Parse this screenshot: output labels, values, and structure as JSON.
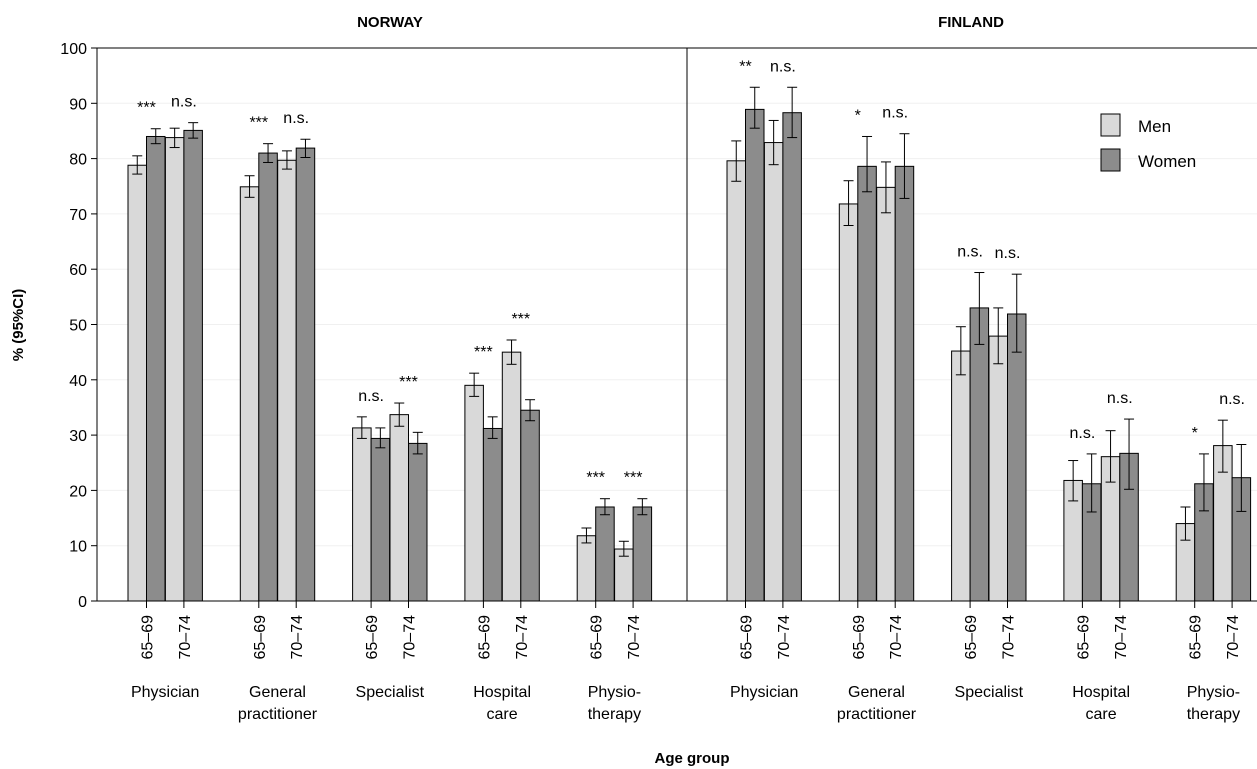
{
  "chart_data": {
    "type": "bar",
    "ylabel": "% (95%CI)",
    "xlabel": "Age group",
    "ylim": [
      0,
      100
    ],
    "yticks": [
      0,
      10,
      20,
      30,
      40,
      50,
      60,
      70,
      80,
      90,
      100
    ],
    "age_groups": [
      "65–69",
      "70–74"
    ],
    "legend": {
      "position": "top-right",
      "entries": [
        {
          "name": "Men",
          "color": "#d9d9d9"
        },
        {
          "name": "Women",
          "color": "#8c8c8c"
        }
      ]
    },
    "panels": [
      {
        "title": "NORWAY",
        "categories": [
          {
            "label": [
              "Physician"
            ],
            "groups": [
              {
                "age": "65–69",
                "men": {
                  "value": 78.8,
                  "low": 77.2,
                  "high": 80.5
                },
                "women": {
                  "value": 84.0,
                  "low": 82.7,
                  "high": 85.4
                },
                "sig": "***"
              },
              {
                "age": "70–74",
                "men": {
                  "value": 83.8,
                  "low": 82.0,
                  "high": 85.5
                },
                "women": {
                  "value": 85.1,
                  "low": 83.7,
                  "high": 86.5
                },
                "sig": "n.s."
              }
            ]
          },
          {
            "label": [
              "General",
              "practitioner"
            ],
            "groups": [
              {
                "age": "65–69",
                "men": {
                  "value": 74.9,
                  "low": 73.0,
                  "high": 76.9
                },
                "women": {
                  "value": 81.0,
                  "low": 79.3,
                  "high": 82.7
                },
                "sig": "***"
              },
              {
                "age": "70–74",
                "men": {
                  "value": 79.7,
                  "low": 78.1,
                  "high": 81.4
                },
                "women": {
                  "value": 81.9,
                  "low": 80.2,
                  "high": 83.5
                },
                "sig": "n.s."
              }
            ]
          },
          {
            "label": [
              "Specialist"
            ],
            "groups": [
              {
                "age": "65–69",
                "men": {
                  "value": 31.3,
                  "low": 29.4,
                  "high": 33.3
                },
                "women": {
                  "value": 29.4,
                  "low": 27.7,
                  "high": 31.3
                },
                "sig": "n.s."
              },
              {
                "age": "70–74",
                "men": {
                  "value": 33.7,
                  "low": 31.6,
                  "high": 35.8
                },
                "women": {
                  "value": 28.5,
                  "low": 26.6,
                  "high": 30.5
                },
                "sig": "***"
              }
            ]
          },
          {
            "label": [
              "Hospital",
              "care"
            ],
            "groups": [
              {
                "age": "65–69",
                "men": {
                  "value": 39.0,
                  "low": 37.0,
                  "high": 41.2
                },
                "women": {
                  "value": 31.2,
                  "low": 29.4,
                  "high": 33.3
                },
                "sig": "***"
              },
              {
                "age": "70–74",
                "men": {
                  "value": 45.0,
                  "low": 42.8,
                  "high": 47.2
                },
                "women": {
                  "value": 34.5,
                  "low": 32.6,
                  "high": 36.4
                },
                "sig": "***"
              }
            ]
          },
          {
            "label": [
              "Physio-",
              "therapy"
            ],
            "groups": [
              {
                "age": "65–69",
                "men": {
                  "value": 11.8,
                  "low": 10.5,
                  "high": 13.2
                },
                "women": {
                  "value": 17.0,
                  "low": 15.6,
                  "high": 18.5
                },
                "sig": "***"
              },
              {
                "age": "70–74",
                "men": {
                  "value": 9.4,
                  "low": 8.1,
                  "high": 10.8
                },
                "women": {
                  "value": 17.0,
                  "low": 15.6,
                  "high": 18.5
                },
                "sig": "***"
              }
            ]
          }
        ]
      },
      {
        "title": "FINLAND",
        "categories": [
          {
            "label": [
              "Physician"
            ],
            "groups": [
              {
                "age": "65–69",
                "men": {
                  "value": 79.6,
                  "low": 75.9,
                  "high": 83.2
                },
                "women": {
                  "value": 88.9,
                  "low": 85.5,
                  "high": 92.9
                },
                "sig": "**"
              },
              {
                "age": "70–74",
                "men": {
                  "value": 82.9,
                  "low": 78.9,
                  "high": 86.9
                },
                "women": {
                  "value": 88.3,
                  "low": 83.8,
                  "high": 92.9
                },
                "sig": "n.s."
              }
            ]
          },
          {
            "label": [
              "General",
              "practitioner"
            ],
            "groups": [
              {
                "age": "65–69",
                "men": {
                  "value": 71.8,
                  "low": 67.9,
                  "high": 76.0
                },
                "women": {
                  "value": 78.6,
                  "low": 74.0,
                  "high": 84.0
                },
                "sig": "*"
              },
              {
                "age": "70–74",
                "men": {
                  "value": 74.8,
                  "low": 70.2,
                  "high": 79.4
                },
                "women": {
                  "value": 78.6,
                  "low": 72.8,
                  "high": 84.5
                },
                "sig": "n.s."
              }
            ]
          },
          {
            "label": [
              "Specialist"
            ],
            "groups": [
              {
                "age": "65–69",
                "men": {
                  "value": 45.2,
                  "low": 40.9,
                  "high": 49.6
                },
                "women": {
                  "value": 53.0,
                  "low": 46.4,
                  "high": 59.4
                },
                "sig": "n.s."
              },
              {
                "age": "70–74",
                "men": {
                  "value": 47.9,
                  "low": 42.9,
                  "high": 53.0
                },
                "women": {
                  "value": 51.9,
                  "low": 45.0,
                  "high": 59.1
                },
                "sig": "n.s."
              }
            ]
          },
          {
            "label": [
              "Hospital",
              "care"
            ],
            "groups": [
              {
                "age": "65–69",
                "men": {
                  "value": 21.8,
                  "low": 18.1,
                  "high": 25.4
                },
                "women": {
                  "value": 21.2,
                  "low": 16.1,
                  "high": 26.6
                },
                "sig": "n.s."
              },
              {
                "age": "70–74",
                "men": {
                  "value": 26.1,
                  "low": 21.5,
                  "high": 30.8
                },
                "women": {
                  "value": 26.7,
                  "low": 20.2,
                  "high": 32.9
                },
                "sig": "n.s."
              }
            ]
          },
          {
            "label": [
              "Physio-",
              "therapy"
            ],
            "groups": [
              {
                "age": "65–69",
                "men": {
                  "value": 14.0,
                  "low": 11.0,
                  "high": 17.0
                },
                "women": {
                  "value": 21.2,
                  "low": 16.3,
                  "high": 26.6
                },
                "sig": "*"
              },
              {
                "age": "70–74",
                "men": {
                  "value": 28.1,
                  "low": 23.3,
                  "high": 32.7
                },
                "women": {
                  "value": 22.3,
                  "low": 16.2,
                  "high": 28.3
                },
                "sig": "n.s."
              }
            ]
          }
        ]
      }
    ]
  }
}
